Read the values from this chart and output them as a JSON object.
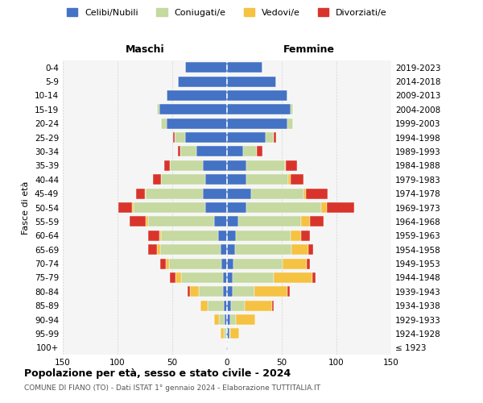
{
  "age_groups": [
    "100+",
    "95-99",
    "90-94",
    "85-89",
    "80-84",
    "75-79",
    "70-74",
    "65-69",
    "60-64",
    "55-59",
    "50-54",
    "45-49",
    "40-44",
    "35-39",
    "30-34",
    "25-29",
    "20-24",
    "15-19",
    "10-14",
    "5-9",
    "0-4"
  ],
  "birth_years": [
    "≤ 1923",
    "1924-1928",
    "1929-1933",
    "1934-1938",
    "1939-1943",
    "1944-1948",
    "1949-1953",
    "1954-1958",
    "1959-1963",
    "1964-1968",
    "1969-1973",
    "1974-1978",
    "1979-1983",
    "1984-1988",
    "1989-1993",
    "1994-1998",
    "1999-2003",
    "2004-2008",
    "2009-2013",
    "2014-2018",
    "2019-2023"
  ],
  "maschi": {
    "celibi": [
      1,
      1,
      2,
      3,
      4,
      4,
      5,
      6,
      8,
      12,
      20,
      22,
      20,
      22,
      28,
      38,
      55,
      62,
      55,
      45,
      38
    ],
    "coniugati": [
      0,
      2,
      5,
      15,
      22,
      38,
      48,
      55,
      52,
      60,
      65,
      52,
      40,
      30,
      15,
      10,
      5,
      2,
      0,
      0,
      0
    ],
    "vedovi": [
      0,
      3,
      5,
      6,
      8,
      5,
      3,
      3,
      2,
      2,
      2,
      1,
      0,
      0,
      0,
      0,
      0,
      0,
      0,
      0,
      0
    ],
    "divorziati": [
      0,
      0,
      0,
      0,
      2,
      5,
      5,
      8,
      10,
      15,
      12,
      8,
      8,
      5,
      2,
      1,
      0,
      0,
      0,
      0,
      0
    ]
  },
  "femmine": {
    "nubili": [
      1,
      2,
      3,
      4,
      5,
      5,
      6,
      7,
      8,
      10,
      18,
      22,
      18,
      18,
      15,
      35,
      55,
      58,
      55,
      45,
      32
    ],
    "coniugate": [
      0,
      1,
      5,
      12,
      20,
      38,
      45,
      52,
      50,
      58,
      68,
      48,
      38,
      35,
      12,
      8,
      5,
      2,
      0,
      0,
      0
    ],
    "vedove": [
      0,
      8,
      18,
      25,
      30,
      35,
      22,
      15,
      10,
      8,
      5,
      2,
      2,
      1,
      0,
      0,
      0,
      0,
      0,
      0,
      0
    ],
    "divorziate": [
      0,
      0,
      0,
      2,
      2,
      3,
      3,
      5,
      8,
      12,
      25,
      20,
      12,
      10,
      5,
      2,
      0,
      0,
      0,
      0,
      0
    ]
  },
  "colors": {
    "celibi": "#4472c4",
    "coniugati": "#c5d9a0",
    "vedovi": "#f5c242",
    "divorziati": "#d9342b"
  },
  "xlim": 150,
  "title": "Popolazione per età, sesso e stato civile - 2024",
  "subtitle": "COMUNE DI FIANO (TO) - Dati ISTAT 1° gennaio 2024 - Elaborazione TUTTITALIA.IT",
  "ylabel_left": "Fasce di età",
  "xlabel_left": "Maschi",
  "xlabel_right": "Femmine",
  "bg_color": "#f5f5f5",
  "grid_color": "#cccccc"
}
